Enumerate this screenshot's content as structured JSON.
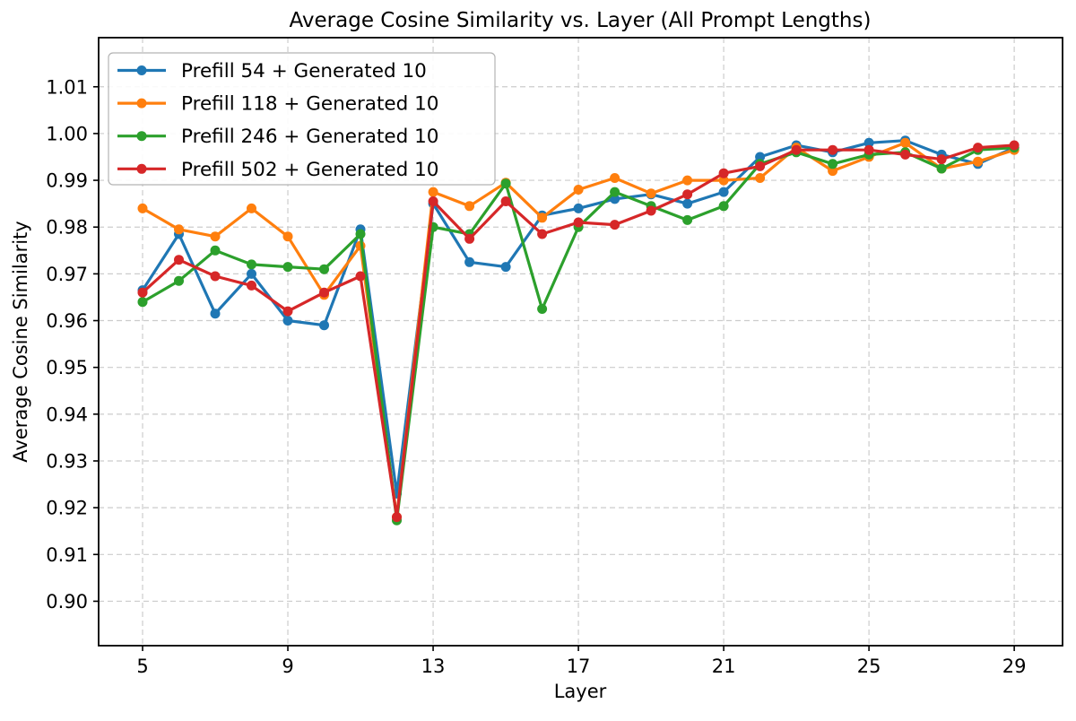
{
  "chart_data": {
    "type": "line",
    "title": "Average Cosine Similarity vs. Layer (All Prompt Lengths)",
    "xlabel": "Layer",
    "ylabel": "Average Cosine Similarity",
    "grid": true,
    "legend_position": "upper-left",
    "x": [
      5,
      6,
      7,
      8,
      9,
      10,
      11,
      12,
      13,
      14,
      15,
      16,
      17,
      18,
      19,
      20,
      21,
      22,
      23,
      24,
      25,
      26,
      27,
      28,
      29
    ],
    "xtick_labels": [
      "5",
      "9",
      "13",
      "17",
      "21",
      "25",
      "29"
    ],
    "xticks": [
      5,
      9,
      13,
      17,
      21,
      25,
      29
    ],
    "ytick_labels": [
      "0.90",
      "0.91",
      "0.92",
      "0.93",
      "0.94",
      "0.95",
      "0.96",
      "0.97",
      "0.98",
      "0.99",
      "1.00",
      "1.01"
    ],
    "yticks": [
      0.9,
      0.91,
      0.92,
      0.93,
      0.94,
      0.95,
      0.96,
      0.97,
      0.98,
      0.99,
      1.0,
      1.01
    ],
    "xlim": [
      3.79,
      30.33
    ],
    "ylim": [
      0.8905,
      1.0205
    ],
    "series": [
      {
        "name": "Prefill 54 + Generated 10",
        "color": "#1f77b4",
        "values": [
          0.9665,
          0.9785,
          0.9615,
          0.97,
          0.96,
          0.959,
          0.9795,
          0.923,
          0.985,
          0.9725,
          0.9715,
          0.9825,
          0.984,
          0.986,
          0.987,
          0.985,
          0.9875,
          0.995,
          0.9975,
          0.996,
          0.998,
          0.9985,
          0.9955,
          0.9935,
          0.997
        ]
      },
      {
        "name": "Prefill 118 + Generated 10",
        "color": "#ff7f0e",
        "values": [
          0.984,
          0.9795,
          0.978,
          0.984,
          0.978,
          0.9655,
          0.976,
          0.918,
          0.9875,
          0.9845,
          0.9895,
          0.982,
          0.988,
          0.9905,
          0.9872,
          0.99,
          0.99,
          0.9905,
          0.997,
          0.992,
          0.995,
          0.998,
          0.9925,
          0.994,
          0.9965
        ]
      },
      {
        "name": "Prefill 246 + Generated 10",
        "color": "#2ca02c",
        "values": [
          0.964,
          0.9685,
          0.975,
          0.972,
          0.9715,
          0.971,
          0.9785,
          0.9173,
          0.98,
          0.9785,
          0.9893,
          0.9625,
          0.98,
          0.9875,
          0.9845,
          0.9815,
          0.9845,
          0.9935,
          0.996,
          0.9935,
          0.9955,
          0.996,
          0.9925,
          0.9965,
          0.997
        ]
      },
      {
        "name": "Prefill 502 + Generated 10",
        "color": "#d62728",
        "values": [
          0.966,
          0.973,
          0.9695,
          0.9675,
          0.962,
          0.966,
          0.9695,
          0.918,
          0.9855,
          0.9775,
          0.9855,
          0.9785,
          0.981,
          0.9805,
          0.9835,
          0.987,
          0.9915,
          0.993,
          0.9965,
          0.9965,
          0.9965,
          0.9955,
          0.9945,
          0.997,
          0.9975
        ]
      }
    ]
  }
}
